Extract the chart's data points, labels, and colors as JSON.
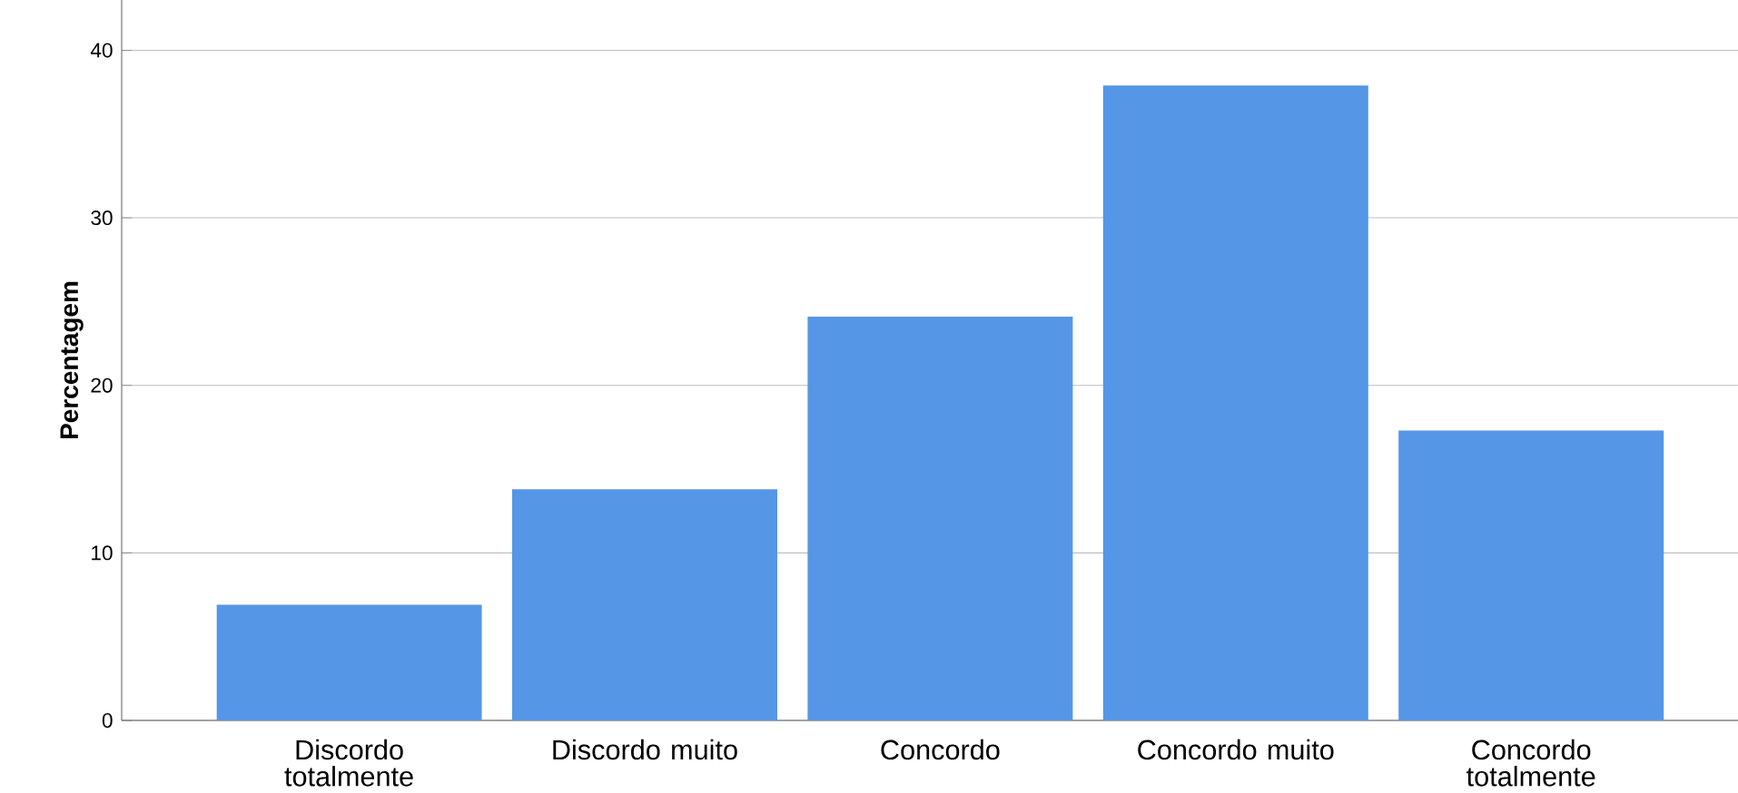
{
  "chart_data": {
    "type": "bar",
    "ylabel": "Percentagem",
    "categories": [
      "Discordo totalmente",
      "Discordo muito",
      "Concordo",
      "Concordo muito",
      "Concordo totalmente"
    ],
    "values": [
      6.9,
      13.8,
      24.1,
      37.9,
      17.3
    ],
    "color": "#5596e6",
    "ylim": [
      0,
      43
    ],
    "yticks": [
      0,
      10,
      20,
      30,
      40
    ],
    "grid": "y"
  }
}
